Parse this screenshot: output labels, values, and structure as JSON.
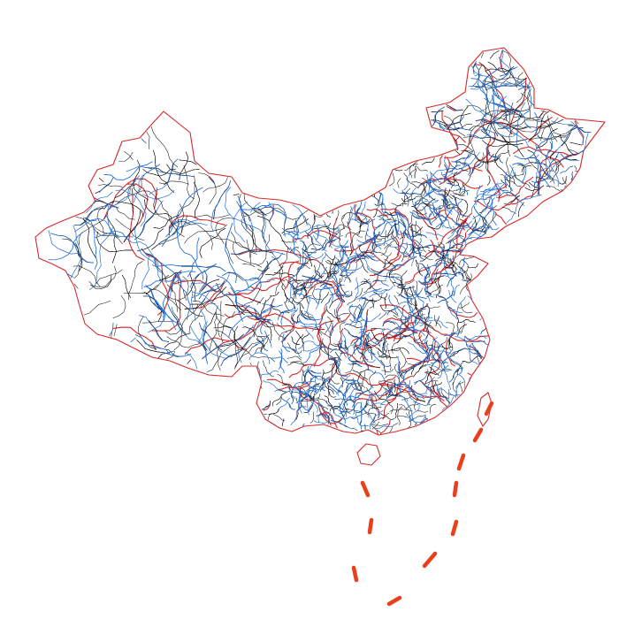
{
  "map": {
    "colors": {
      "background": "#ffffff",
      "province_border": "#d42a2a",
      "county_border": "#111111",
      "river": "#1e6fd9",
      "maritime_boundary": "#e8401c"
    },
    "layers": [
      "province-borders",
      "county-borders",
      "rivers",
      "maritime-boundary-dashes"
    ]
  }
}
